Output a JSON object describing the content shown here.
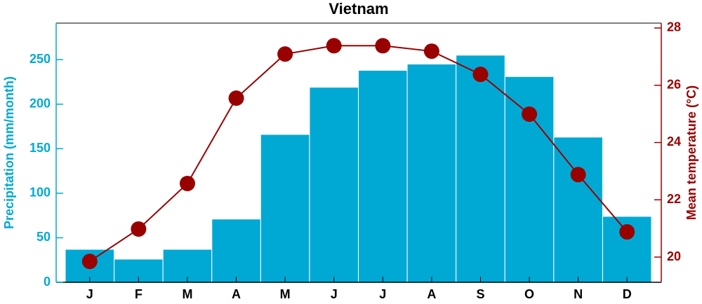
{
  "chart_data": {
    "type": "bar-line",
    "title": "Vietnam",
    "y_label": "Precipitation (mm/month)",
    "y2_label": "Mean temperature (°C)",
    "categories": [
      "J",
      "F",
      "M",
      "A",
      "M",
      "J",
      "J",
      "A",
      "S",
      "O",
      "N",
      "D"
    ],
    "series": [
      {
        "name": "Precipitation",
        "type": "bar",
        "color": "#00a9d4",
        "values": [
          37,
          26,
          37,
          71,
          166,
          219,
          238,
          245,
          255,
          231,
          163,
          74
        ]
      },
      {
        "name": "Mean temperature",
        "type": "line",
        "axis": "y2",
        "color": "#990000",
        "values": [
          19.85,
          20.98,
          22.57,
          25.55,
          27.09,
          27.38,
          27.38,
          27.19,
          26.38,
          24.99,
          22.88,
          20.88
        ]
      }
    ],
    "ylim": [
      0,
      291
    ],
    "yticks": [
      0,
      50,
      100,
      150,
      200,
      250
    ],
    "y2lim": [
      19.12,
      28.17
    ],
    "y2ticks": [
      20,
      22,
      24,
      26,
      28
    ]
  }
}
